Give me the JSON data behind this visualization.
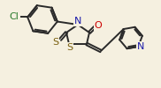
{
  "bg_color": "#f5f0e0",
  "bond_color": "#2a2a2a",
  "atom_colors": {
    "N": "#1a1aaa",
    "S": "#7a6010",
    "O": "#cc0000",
    "Cl": "#2a7a2a"
  },
  "linewidth": 1.4,
  "figsize": [
    1.82,
    1.0
  ],
  "dpi": 100
}
